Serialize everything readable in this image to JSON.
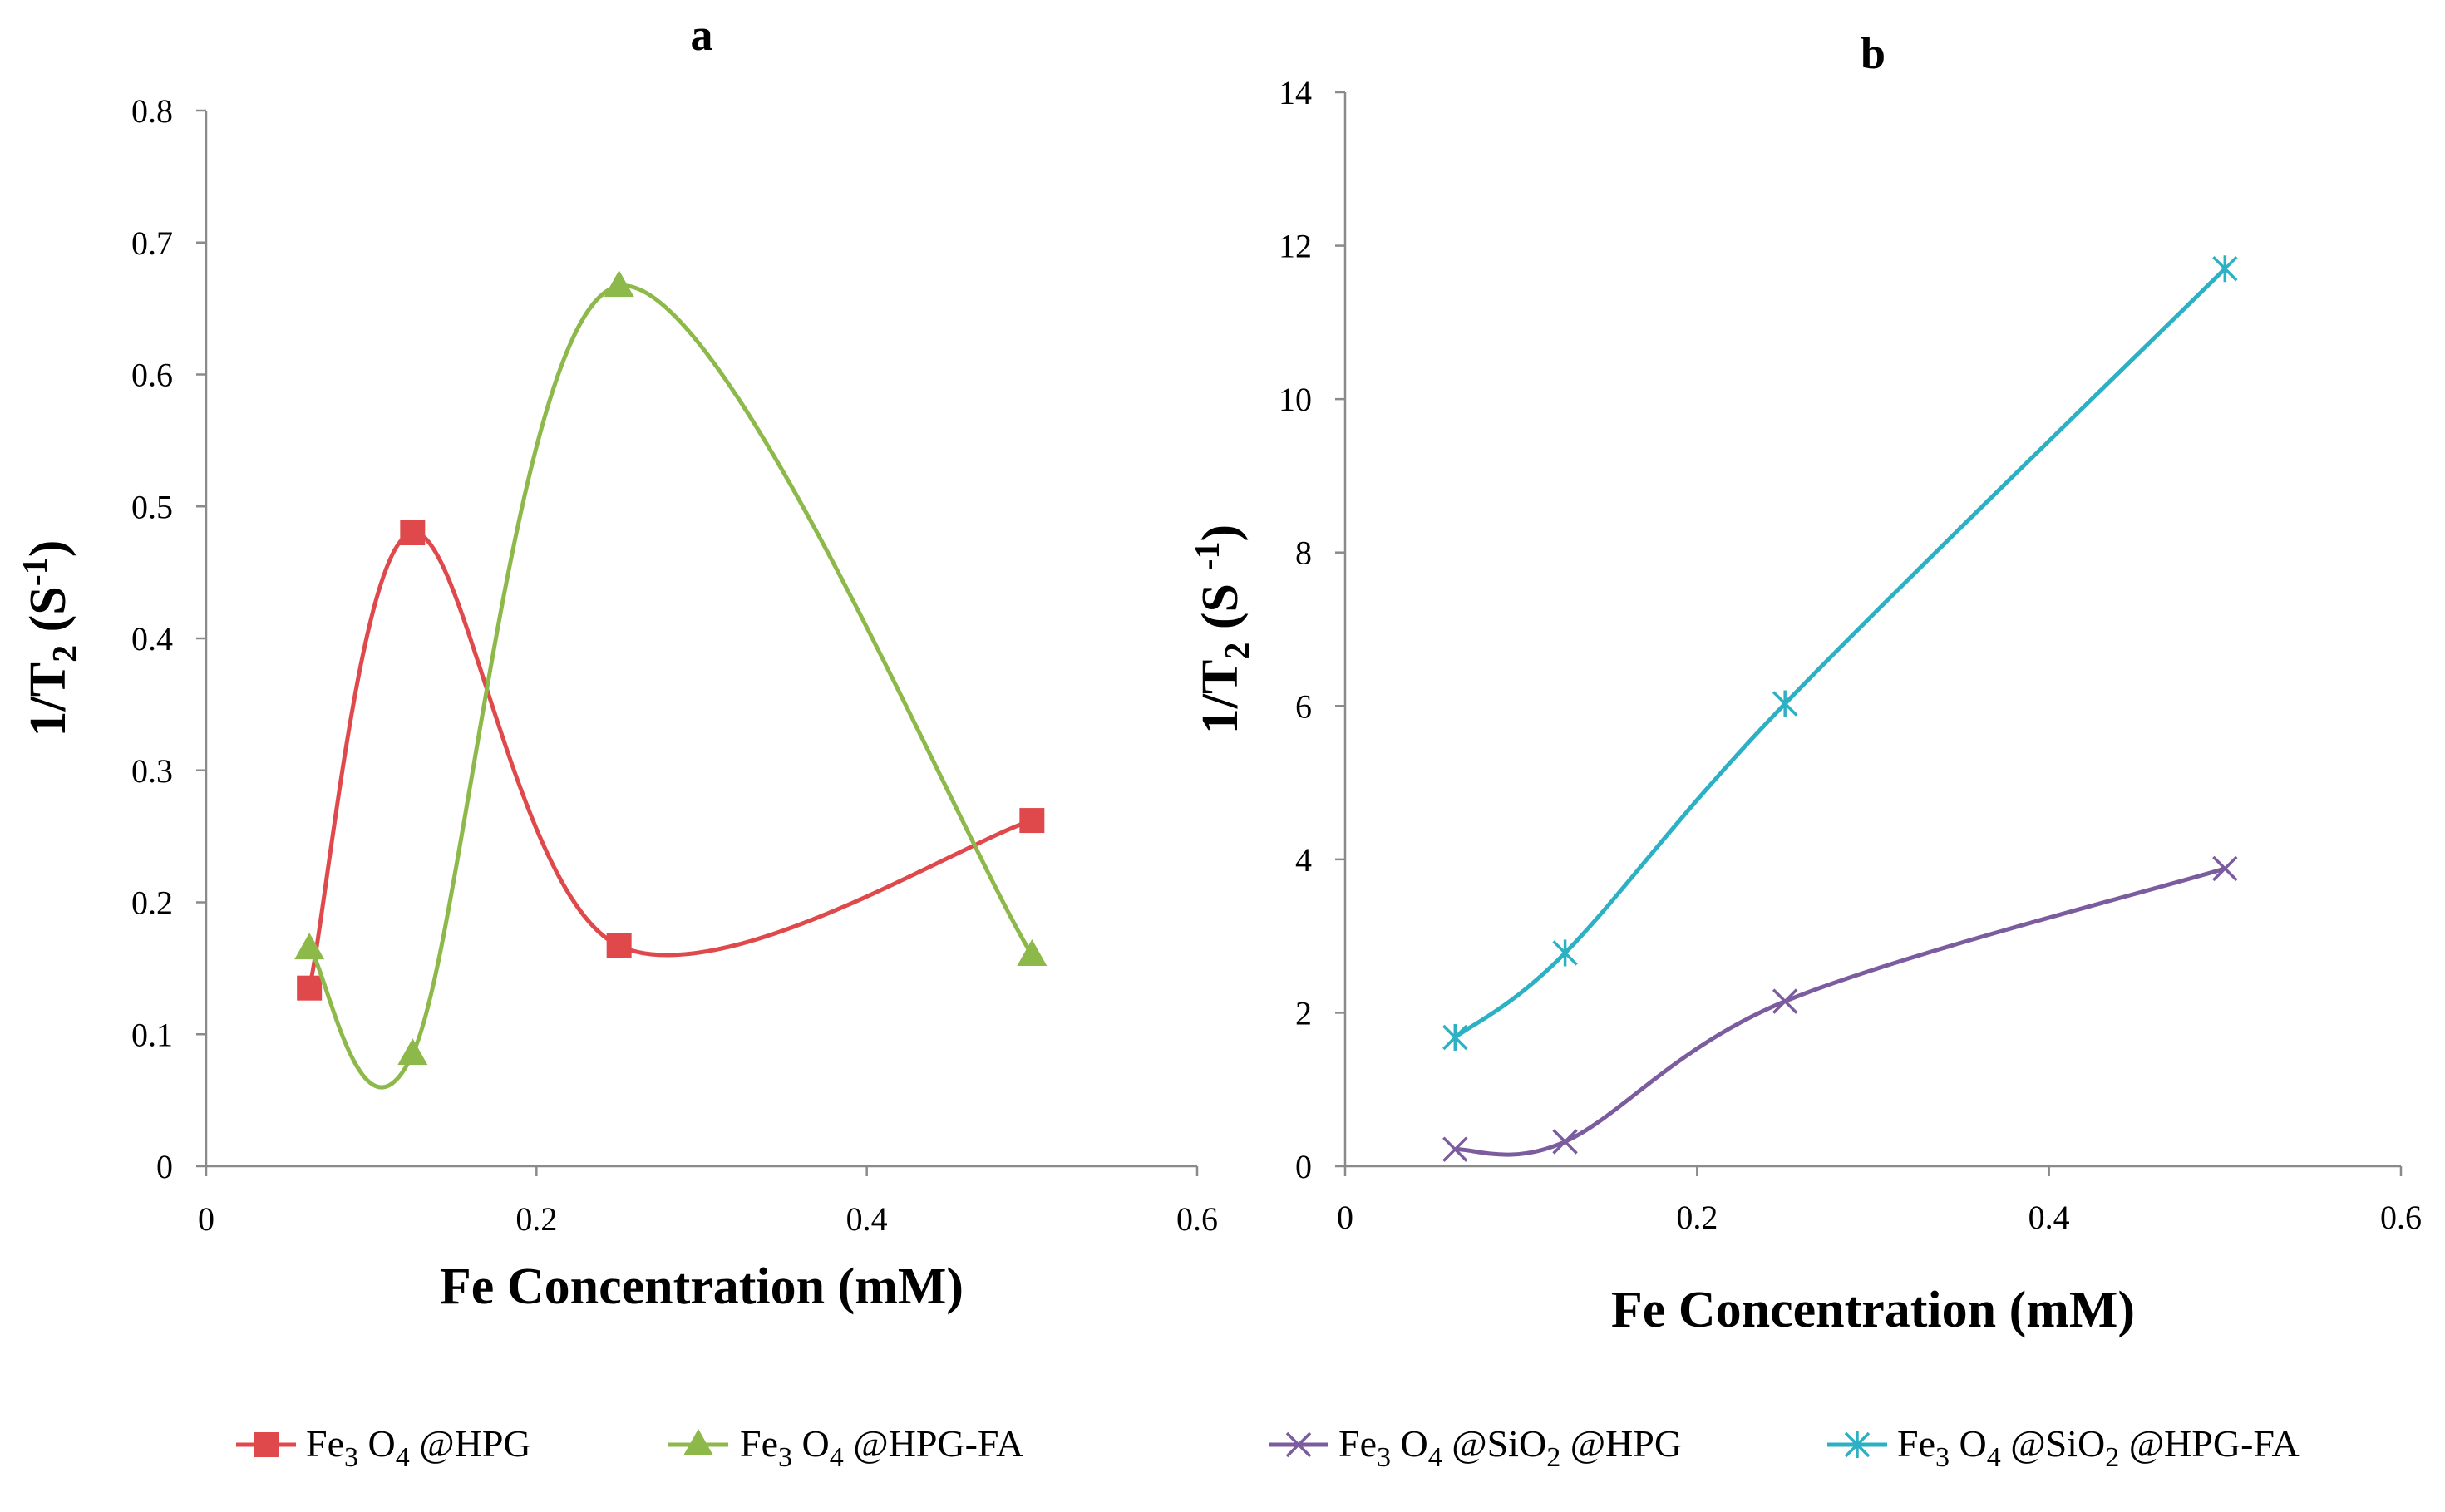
{
  "chart_data": [
    {
      "type": "scatter",
      "title": "a",
      "xlabel": "Fe Concentration (mM)",
      "ylabel": {
        "base": "1/T",
        "sub": "2",
        "mid": " (S",
        "sup": "-1",
        "end": ")"
      },
      "xlim": [
        0,
        0.6
      ],
      "ylim": [
        0,
        0.8
      ],
      "xticks": [
        0,
        0.2,
        0.4,
        0.6
      ],
      "xtick_labels": [
        "0",
        "0.2",
        "0.4",
        "0.6"
      ],
      "yticks": [
        0,
        0.1,
        0.2,
        0.3,
        0.4,
        0.5,
        0.6,
        0.7,
        0.8
      ],
      "ytick_labels": [
        "0",
        "0.1",
        "0.2",
        "0.3",
        "0.4",
        "0.5",
        "0.6",
        "0.7",
        "0.8"
      ],
      "series": [
        {
          "name": "Fe3O4 @HPG",
          "legend_parts": [
            [
              "Fe",
              ""
            ],
            [
              "3",
              "sub"
            ],
            [
              " O",
              ""
            ],
            [
              "4",
              "sub"
            ],
            [
              " @HPG",
              ""
            ]
          ],
          "color": "#E0494B",
          "marker": "square",
          "x": [
            0.0625,
            0.125,
            0.25,
            0.5
          ],
          "y": [
            0.135,
            0.48,
            0.167,
            0.262
          ]
        },
        {
          "name": "Fe3O4 @HPG-FA",
          "legend_parts": [
            [
              "Fe",
              ""
            ],
            [
              "3",
              "sub"
            ],
            [
              " O",
              ""
            ],
            [
              "4",
              "sub"
            ],
            [
              " @HPG-FA",
              ""
            ]
          ],
          "color": "#8DB84A",
          "marker": "triangle",
          "x": [
            0.0625,
            0.125,
            0.25,
            0.5
          ],
          "y": [
            0.165,
            0.085,
            0.667,
            0.16
          ]
        }
      ]
    },
    {
      "type": "scatter",
      "title": "b",
      "xlabel": "Fe Concentration (mM)",
      "ylabel": {
        "base": "1/T",
        "sub": "2",
        "mid": " (S ",
        "sup": "-1",
        "end": ")"
      },
      "xlim": [
        0,
        0.6
      ],
      "ylim": [
        0,
        14
      ],
      "xticks": [
        0,
        0.2,
        0.4,
        0.6
      ],
      "xtick_labels": [
        "0",
        "0.2",
        "0.4",
        "0.6"
      ],
      "yticks": [
        0,
        2,
        4,
        6,
        8,
        10,
        12,
        14
      ],
      "ytick_labels": [
        "0",
        "2",
        "4",
        "6",
        "8",
        "10",
        "12",
        "14"
      ],
      "series": [
        {
          "name": "Fe3O4 @SiO2 @HPG",
          "legend_parts": [
            [
              "Fe",
              ""
            ],
            [
              "3",
              "sub"
            ],
            [
              " O",
              ""
            ],
            [
              "4",
              "sub"
            ],
            [
              " @SiO",
              ""
            ],
            [
              "2",
              "sub"
            ],
            [
              " @HPG",
              ""
            ]
          ],
          "color": "#7B5C9E",
          "marker": "x",
          "x": [
            0.0625,
            0.125,
            0.25,
            0.5
          ],
          "y": [
            0.22,
            0.32,
            2.15,
            3.88
          ]
        },
        {
          "name": "Fe3O4 @SiO2 @HPG-FA",
          "legend_parts": [
            [
              "Fe",
              ""
            ],
            [
              "3",
              "sub"
            ],
            [
              " O",
              ""
            ],
            [
              "4",
              "sub"
            ],
            [
              " @SiO",
              ""
            ],
            [
              "2",
              "sub"
            ],
            [
              " @HPG-FA",
              ""
            ]
          ],
          "color": "#2CB0C4",
          "marker": "asterisk",
          "x": [
            0.0625,
            0.125,
            0.25,
            0.5
          ],
          "y": [
            1.68,
            2.78,
            6.03,
            11.7
          ]
        }
      ]
    }
  ]
}
